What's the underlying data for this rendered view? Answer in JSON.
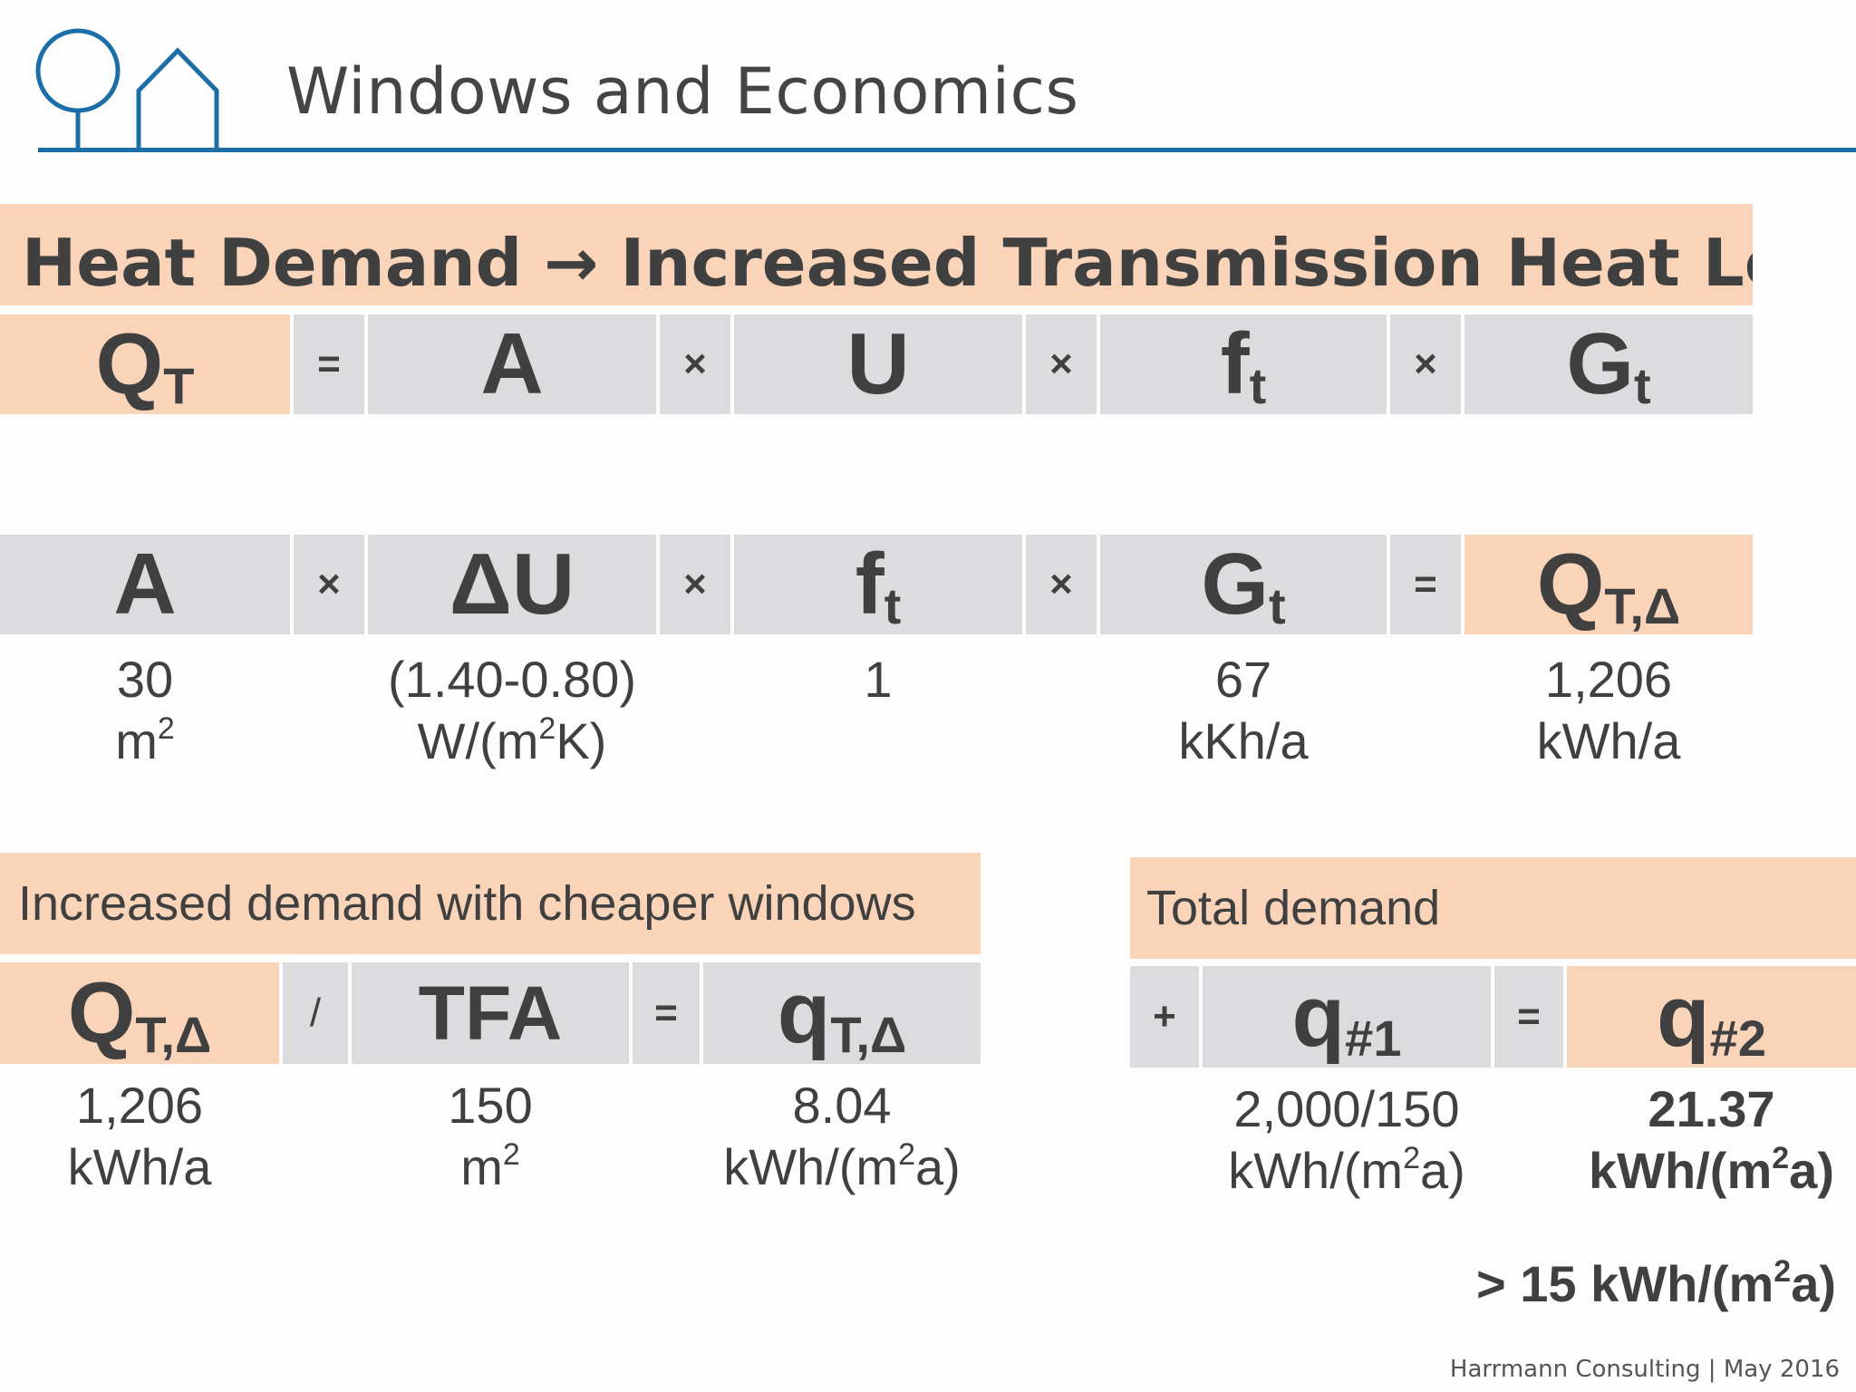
{
  "title": "Windows and Economics",
  "heat_banner": {
    "part1": "Heat Demand",
    "arrow": "→",
    "part2": "Increased Transmission Heat Losses"
  },
  "formula": {
    "qt_main": "Q",
    "qt_sub": "T",
    "eq": "=",
    "a": "A",
    "times": "×",
    "u": "U",
    "f_main": "f",
    "f_sub": "t",
    "g_main": "G",
    "g_sub": "t"
  },
  "delta_formula": {
    "a": "A",
    "du": "ΔU",
    "f_main": "f",
    "f_sub": "t",
    "g_main": "G",
    "g_sub": "t",
    "q_main": "Q",
    "q_sub": "T,Δ",
    "times": "×",
    "eq": "="
  },
  "delta_values": {
    "a_val": "30",
    "a_unit_pre": "m",
    "a_unit_sup": "2",
    "du_val": "(1.40-0.80)",
    "du_unit_pre": "W/(m",
    "du_unit_sup": "2",
    "du_unit_post": "K)",
    "f_val": "1",
    "g_val": "67",
    "g_unit": "kKh/a",
    "q_val": "1,206",
    "q_unit": "kWh/a"
  },
  "increased": {
    "banner": "Increased demand with cheaper windows",
    "q_main": "Q",
    "q_sub": "T,Δ",
    "slash": "/",
    "tfa": "TFA",
    "eq": "=",
    "qq_main": "q",
    "qq_sub": "T,Δ",
    "q_val": "1,206",
    "q_unit": "kWh/a",
    "tfa_val": "150",
    "tfa_unit_pre": "m",
    "tfa_unit_sup": "2",
    "res_val": "8.04",
    "res_unit_pre": "kWh/(m",
    "res_unit_sup": "2",
    "res_unit_post": "a)"
  },
  "total": {
    "banner": "Total demand",
    "plus": "+",
    "q1_main": "q",
    "q1_sub": "#1",
    "eq": "=",
    "q2_main": "q",
    "q2_sub": "#2",
    "q1_val": "2,000/150",
    "q1_unit_pre": "kWh/(m",
    "q1_unit_sup": "2",
    "q1_unit_post": "a)",
    "q2_val": "21.37",
    "q2_unit_pre": "kWh/(m",
    "q2_unit_sup": "2",
    "q2_unit_post": "a)"
  },
  "threshold": {
    "pre": "> 15 kWh/(m",
    "sup": "2",
    "post": "a)"
  },
  "footer": "Harrmann Consulting | May 2016",
  "colors": {
    "accent_blue": "#1b6ea8",
    "peach": "#f9d4b8",
    "grey": "#dcdcdf",
    "text": "#404040"
  }
}
